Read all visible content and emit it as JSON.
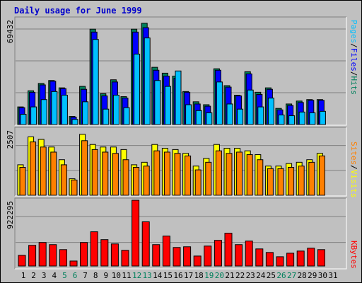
{
  "title": "Daily usage for June 1999",
  "colors": {
    "hits": "#00805c",
    "files": "#0000ff",
    "pages": "#00c0ff",
    "visits": "#ffff00",
    "sites": "#ff8000",
    "kbytes": "#ff0000",
    "weekend_day": "#00805c",
    "weekday": "#000080"
  },
  "chart_data": [
    {
      "type": "bar",
      "panel": "hits-files-pages",
      "ymax_label": "69432",
      "ylim": [
        0,
        69432
      ],
      "categories": [
        "1",
        "2",
        "3",
        "4",
        "5",
        "6",
        "7",
        "8",
        "9",
        "10",
        "11",
        "12",
        "13",
        "14",
        "15",
        "16",
        "17",
        "18",
        "19",
        "20",
        "21",
        "22",
        "23",
        "24",
        "25",
        "26",
        "27",
        "28",
        "29",
        "30",
        "31"
      ],
      "legend": [
        "Pages",
        "/",
        "Files",
        "/",
        "Hits"
      ],
      "series": [
        {
          "name": "Hits",
          "values": [
            12000,
            23000,
            28000,
            30000,
            25000,
            5500,
            26000,
            65000,
            21000,
            30500,
            19000,
            65000,
            69000,
            39000,
            35000,
            33000,
            22500,
            15500,
            13500,
            38000,
            26500,
            20000,
            36000,
            22000,
            25000,
            11000,
            14000,
            16000,
            17000,
            17000,
            0
          ]
        },
        {
          "name": "Files",
          "values": [
            11500,
            22000,
            27000,
            29500,
            24500,
            5000,
            24000,
            63000,
            19500,
            29000,
            18000,
            63000,
            66000,
            37000,
            33000,
            31500,
            22000,
            14000,
            12500,
            37000,
            25500,
            19500,
            34500,
            20500,
            24000,
            10000,
            13000,
            15000,
            16500,
            16500,
            0
          ]
        },
        {
          "name": "Pages",
          "values": [
            7000,
            12000,
            17000,
            22500,
            20000,
            3500,
            15500,
            58000,
            10500,
            20000,
            11500,
            48000,
            59000,
            30000,
            26000,
            36500,
            13500,
            9500,
            8000,
            29000,
            14000,
            10500,
            23500,
            12000,
            18000,
            6500,
            6000,
            8500,
            8000,
            9000,
            0
          ]
        }
      ]
    },
    {
      "type": "bar",
      "panel": "visits-sites",
      "ymax_label": "2507",
      "ylim": [
        0,
        2507
      ],
      "categories": [
        "1",
        "2",
        "3",
        "4",
        "5",
        "6",
        "7",
        "8",
        "9",
        "10",
        "11",
        "12",
        "13",
        "14",
        "15",
        "16",
        "17",
        "18",
        "19",
        "20",
        "21",
        "22",
        "23",
        "24",
        "25",
        "26",
        "27",
        "28",
        "29",
        "30",
        "31"
      ],
      "legend": [
        "Sites",
        "/",
        "Visits"
      ],
      "series": [
        {
          "name": "Visits",
          "values": [
            1200,
            2300,
            2200,
            1900,
            1400,
            650,
            2400,
            2000,
            1900,
            1900,
            1800,
            1200,
            1300,
            2000,
            1850,
            1800,
            1650,
            1150,
            1450,
            2000,
            1850,
            1850,
            1750,
            1600,
            1150,
            1150,
            1250,
            1300,
            1400,
            1650,
            0
          ]
        },
        {
          "name": "Sites",
          "values": [
            1100,
            2100,
            1900,
            1700,
            1200,
            600,
            2150,
            1800,
            1700,
            1650,
            1400,
            1100,
            1150,
            1750,
            1700,
            1650,
            1550,
            1000,
            1300,
            1750,
            1650,
            1700,
            1600,
            1400,
            1050,
            1050,
            1100,
            1150,
            1300,
            1550,
            0
          ]
        }
      ]
    },
    {
      "type": "bar",
      "panel": "kbytes",
      "ymax_label": "922295",
      "ylim": [
        0,
        922295
      ],
      "categories": [
        "1",
        "2",
        "3",
        "4",
        "5",
        "6",
        "7",
        "8",
        "9",
        "10",
        "11",
        "12",
        "13",
        "14",
        "15",
        "16",
        "17",
        "18",
        "19",
        "20",
        "21",
        "22",
        "23",
        "24",
        "25",
        "26",
        "27",
        "28",
        "29",
        "30",
        "31"
      ],
      "legend": [
        "KBytes"
      ],
      "series": [
        {
          "name": "KBytes",
          "values": [
            150000,
            290000,
            330000,
            300000,
            230000,
            70000,
            330000,
            480000,
            370000,
            310000,
            220000,
            922000,
            620000,
            300000,
            420000,
            260000,
            270000,
            140000,
            280000,
            360000,
            460000,
            300000,
            350000,
            240000,
            190000,
            130000,
            180000,
            210000,
            250000,
            230000,
            0
          ]
        }
      ]
    }
  ],
  "weekend_days": [
    5,
    6,
    12,
    13,
    19,
    20,
    26,
    27
  ]
}
